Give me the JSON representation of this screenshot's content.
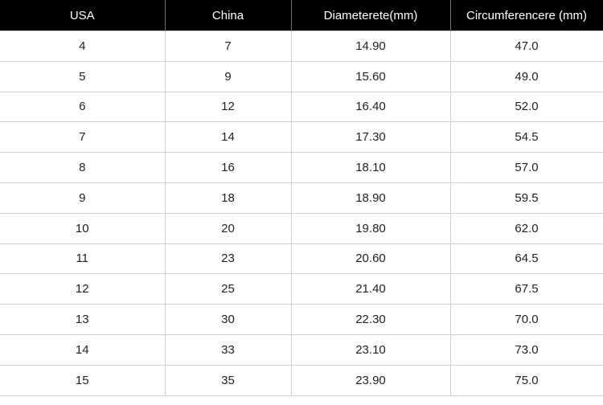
{
  "headers": [
    "USA",
    "China",
    "Diameterete(mm)",
    "Circumferencere (mm)"
  ],
  "rows": [
    [
      "4",
      "7",
      "14.90",
      "47.0"
    ],
    [
      "5",
      "9",
      "15.60",
      "49.0"
    ],
    [
      "6",
      "12",
      "16.40",
      "52.0"
    ],
    [
      "7",
      "14",
      "17.30",
      "54.5"
    ],
    [
      "8",
      "16",
      "18.10",
      "57.0"
    ],
    [
      "9",
      "18",
      "18.90",
      "59.5"
    ],
    [
      "10",
      "20",
      "19.80",
      "62.0"
    ],
    [
      "11",
      "23",
      "20.60",
      "64.5"
    ],
    [
      "12",
      "25",
      "21.40",
      "67.5"
    ],
    [
      "13",
      "30",
      "22.30",
      "70.0"
    ],
    [
      "14",
      "33",
      "23.10",
      "73.0"
    ],
    [
      "15",
      "35",
      "23.90",
      "75.0"
    ]
  ]
}
